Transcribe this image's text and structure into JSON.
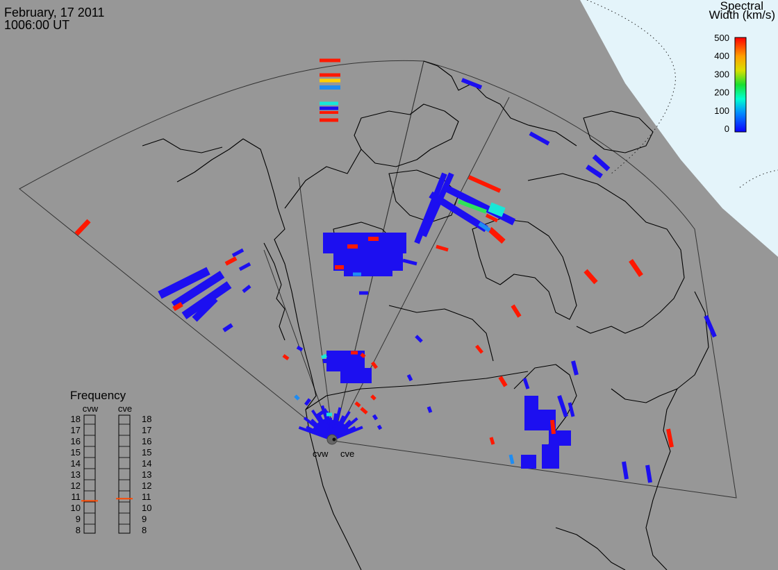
{
  "header": {
    "date": "February, 17 2011",
    "time": "1006:00 UT"
  },
  "colorbar": {
    "title_line1": "Spectral",
    "title_line2": "Width (km/s)",
    "ticks": [
      "500",
      "400",
      "300",
      "200",
      "100",
      "0"
    ],
    "range": [
      0,
      500
    ]
  },
  "frequency": {
    "title": "Frequency",
    "left_label": "cvw",
    "right_label": "cve",
    "scale": [
      "18",
      "17",
      "16",
      "15",
      "14",
      "13",
      "12",
      "11",
      "10",
      "9",
      "8"
    ],
    "cvw_mhz": 10.6,
    "cve_mhz": 10.8
  },
  "radars": {
    "west": "cvw",
    "east": "cve"
  },
  "colors": {
    "map_gray": "#979797",
    "pole_region": "#e4f4fa",
    "scatter_blue": "#1c0ff0",
    "scatter_red": "#ff1800",
    "scatter_cyan": "#18e7d8",
    "scatter_green": "#2fe35a",
    "scatter_lightblue": "#1f8cf2",
    "frequency_marker": "#ff4800"
  }
}
